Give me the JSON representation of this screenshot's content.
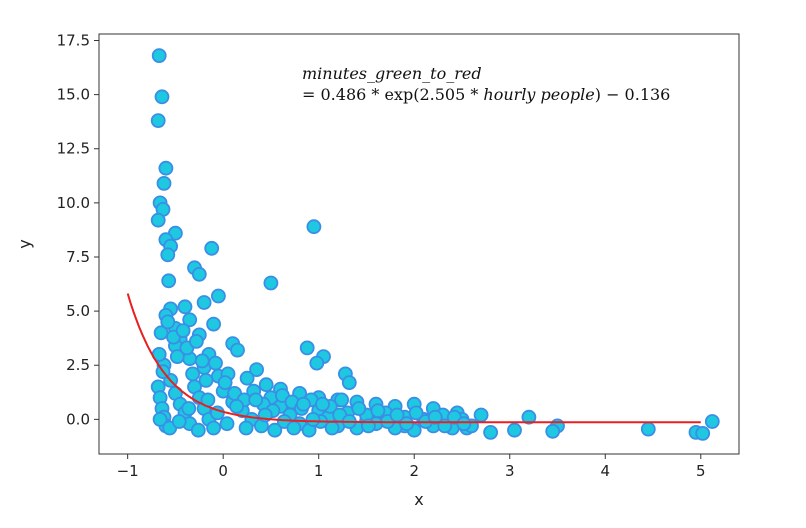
{
  "chart_data": {
    "type": "scatter",
    "title": "",
    "xlabel": "x",
    "ylabel": "y",
    "xlim": [
      -1.3,
      5.4
    ],
    "ylim": [
      -1.6,
      17.8
    ],
    "xticks": [
      -1,
      0,
      1,
      2,
      3,
      4,
      5
    ],
    "xtick_labels": [
      "−1",
      "0",
      "1",
      "2",
      "3",
      "4",
      "5"
    ],
    "yticks": [
      0.0,
      2.5,
      5.0,
      7.5,
      10.0,
      12.5,
      15.0,
      17.5
    ],
    "ytick_labels": [
      "0.0",
      "2.5",
      "5.0",
      "7.5",
      "10.0",
      "12.5",
      "15.0",
      "17.5"
    ],
    "grid": false,
    "annotation": {
      "line1": "minutes_green_to_red",
      "line2_prefix": "= 0.486 * exp(2.505 * ",
      "line2_italic": "hourly people",
      "line2_suffix": ") − 0.136"
    },
    "colors": {
      "marker_fill": "#1ec8e0",
      "marker_edge": "#3a8ee6",
      "fit_line": "#e82020"
    },
    "fit": {
      "name": "",
      "a": 0.486,
      "b": 2.505,
      "c": -0.136,
      "x_range": [
        -1,
        5
      ]
    },
    "series": [
      {
        "name": "",
        "points": [
          [
            -0.67,
            16.8
          ],
          [
            -0.64,
            14.9
          ],
          [
            -0.68,
            13.8
          ],
          [
            -0.6,
            11.6
          ],
          [
            -0.62,
            10.9
          ],
          [
            -0.66,
            10.0
          ],
          [
            -0.63,
            9.7
          ],
          [
            -0.68,
            9.2
          ],
          [
            -0.5,
            8.6
          ],
          [
            -0.6,
            8.3
          ],
          [
            -0.55,
            8.0
          ],
          [
            -0.12,
            7.9
          ],
          [
            -0.58,
            7.6
          ],
          [
            -0.3,
            7.0
          ],
          [
            -0.25,
            6.7
          ],
          [
            -0.57,
            6.4
          ],
          [
            0.95,
            8.9
          ],
          [
            0.5,
            6.3
          ],
          [
            -0.05,
            5.7
          ],
          [
            -0.2,
            5.4
          ],
          [
            -0.4,
            5.2
          ],
          [
            -0.55,
            5.1
          ],
          [
            -0.6,
            4.8
          ],
          [
            -0.35,
            4.6
          ],
          [
            -0.1,
            4.4
          ],
          [
            -0.5,
            4.2
          ],
          [
            -0.65,
            4.0
          ],
          [
            -0.25,
            3.9
          ],
          [
            -0.45,
            3.7
          ],
          [
            0.1,
            3.5
          ],
          [
            0.15,
            3.2
          ],
          [
            -0.15,
            3.0
          ],
          [
            0.88,
            3.3
          ],
          [
            1.05,
            2.9
          ],
          [
            0.98,
            2.6
          ],
          [
            1.28,
            2.1
          ],
          [
            1.32,
            1.7
          ],
          [
            0.35,
            2.3
          ],
          [
            -0.05,
            2.0
          ],
          [
            -0.62,
            2.5
          ],
          [
            -0.5,
            3.4
          ],
          [
            -0.35,
            2.8
          ],
          [
            -0.2,
            2.4
          ],
          [
            0.05,
            2.1
          ],
          [
            0.25,
            1.9
          ],
          [
            0.45,
            1.6
          ],
          [
            0.6,
            1.4
          ],
          [
            0.8,
            1.2
          ],
          [
            1.0,
            1.0
          ],
          [
            1.2,
            0.9
          ],
          [
            1.4,
            0.8
          ],
          [
            1.6,
            0.7
          ],
          [
            1.8,
            0.6
          ],
          [
            2.0,
            0.7
          ],
          [
            2.2,
            0.5
          ],
          [
            2.45,
            0.3
          ],
          [
            2.7,
            0.2
          ],
          [
            3.2,
            0.1
          ],
          [
            3.5,
            -0.3
          ],
          [
            3.05,
            -0.5
          ],
          [
            2.55,
            -0.4
          ],
          [
            2.8,
            -0.6
          ],
          [
            4.45,
            -0.45
          ],
          [
            4.95,
            -0.6
          ],
          [
            5.02,
            -0.65
          ],
          [
            5.12,
            -0.1
          ],
          [
            3.45,
            -0.55
          ],
          [
            2.3,
            -0.2
          ],
          [
            1.9,
            -0.3
          ],
          [
            1.5,
            -0.1
          ],
          [
            -0.68,
            1.5
          ],
          [
            -0.66,
            1.0
          ],
          [
            -0.64,
            0.5
          ],
          [
            -0.62,
            0.1
          ],
          [
            -0.6,
            -0.3
          ],
          [
            -0.55,
            1.8
          ],
          [
            -0.5,
            1.2
          ],
          [
            -0.45,
            0.7
          ],
          [
            -0.4,
            0.3
          ],
          [
            -0.35,
            -0.2
          ],
          [
            -0.3,
            1.5
          ],
          [
            -0.25,
            1.0
          ],
          [
            -0.2,
            0.5
          ],
          [
            -0.15,
            0.0
          ],
          [
            -0.1,
            -0.4
          ],
          [
            0.0,
            1.3
          ],
          [
            0.1,
            0.8
          ],
          [
            0.2,
            0.4
          ],
          [
            0.3,
            0.0
          ],
          [
            0.4,
            -0.3
          ],
          [
            0.5,
            1.0
          ],
          [
            0.6,
            0.6
          ],
          [
            0.7,
            0.2
          ],
          [
            0.8,
            -0.2
          ],
          [
            0.9,
            -0.5
          ],
          [
            1.0,
            0.4
          ],
          [
            1.1,
            0.1
          ],
          [
            1.2,
            -0.3
          ],
          [
            1.3,
            0.3
          ],
          [
            1.4,
            -0.4
          ],
          [
            1.5,
            0.2
          ],
          [
            1.6,
            -0.2
          ],
          [
            1.7,
            0.3
          ],
          [
            1.8,
            -0.4
          ],
          [
            1.9,
            0.1
          ],
          [
            2.0,
            -0.5
          ],
          [
            2.1,
            0.0
          ],
          [
            2.2,
            -0.3
          ],
          [
            2.3,
            0.2
          ],
          [
            2.4,
            -0.4
          ],
          [
            2.5,
            0.0
          ],
          [
            2.6,
            -0.3
          ],
          [
            -0.67,
            3.0
          ],
          [
            -0.63,
            2.2
          ],
          [
            -0.58,
            4.5
          ],
          [
            -0.52,
            3.8
          ],
          [
            -0.48,
            2.9
          ],
          [
            -0.42,
            4.1
          ],
          [
            -0.38,
            3.3
          ],
          [
            -0.32,
            2.1
          ],
          [
            -0.28,
            3.6
          ],
          [
            -0.22,
            2.7
          ],
          [
            -0.18,
            1.8
          ],
          [
            -0.08,
            2.6
          ],
          [
            0.02,
            1.7
          ],
          [
            0.12,
            1.2
          ],
          [
            0.22,
            0.9
          ],
          [
            0.32,
            1.3
          ],
          [
            0.42,
            0.7
          ],
          [
            0.52,
            0.4
          ],
          [
            0.62,
            1.1
          ],
          [
            0.72,
            0.8
          ],
          [
            0.82,
            0.5
          ],
          [
            0.92,
            0.9
          ],
          [
            1.02,
            -0.1
          ],
          [
            1.12,
            0.6
          ],
          [
            1.22,
            0.2
          ],
          [
            1.32,
            -0.1
          ],
          [
            1.42,
            0.5
          ],
          [
            1.52,
            -0.3
          ],
          [
            1.62,
            0.4
          ],
          [
            1.72,
            -0.1
          ],
          [
            1.82,
            0.2
          ],
          [
            1.92,
            -0.2
          ],
          [
            2.02,
            0.3
          ],
          [
            2.12,
            -0.1
          ],
          [
            2.22,
            0.1
          ],
          [
            2.32,
            -0.3
          ],
          [
            2.42,
            0.1
          ],
          [
            2.52,
            -0.2
          ],
          [
            -0.66,
            0.0
          ],
          [
            -0.56,
            -0.4
          ],
          [
            -0.46,
            -0.1
          ],
          [
            -0.36,
            0.5
          ],
          [
            -0.26,
            -0.5
          ],
          [
            -0.16,
            0.9
          ],
          [
            -0.06,
            0.3
          ],
          [
            0.04,
            -0.2
          ],
          [
            0.14,
            0.6
          ],
          [
            0.24,
            -0.4
          ],
          [
            0.34,
            0.9
          ],
          [
            0.44,
            0.2
          ],
          [
            0.54,
            -0.5
          ],
          [
            0.64,
            -0.1
          ],
          [
            0.74,
            -0.4
          ],
          [
            0.84,
            0.7
          ],
          [
            0.94,
            0.0
          ],
          [
            1.04,
            0.7
          ],
          [
            1.14,
            -0.4
          ],
          [
            1.24,
            0.9
          ]
        ]
      }
    ]
  }
}
